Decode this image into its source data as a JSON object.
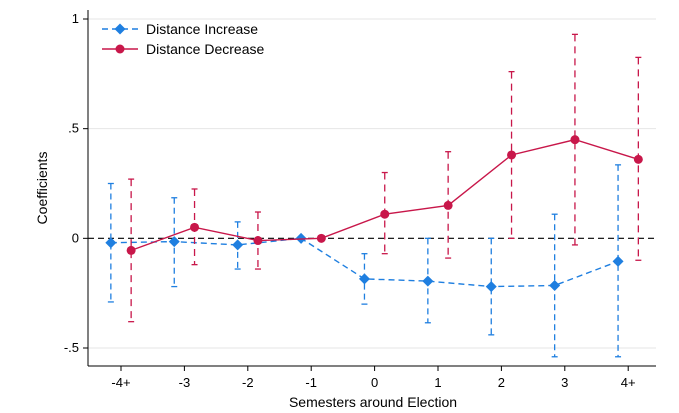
{
  "chart_data": {
    "type": "scatter",
    "title": "",
    "xlabel": "Semesters around Election",
    "ylabel": "Coefficients",
    "categories": [
      "-4+",
      "-3",
      "-2",
      "-1",
      "0",
      "1",
      "2",
      "3",
      "4+"
    ],
    "ylim": [
      -0.55,
      1.0
    ],
    "yticks": [
      -0.5,
      0,
      0.5,
      1
    ],
    "ytick_labels": [
      "-.5",
      "0",
      ".5",
      "1"
    ],
    "grid": true,
    "reference_line": 0,
    "legend_position": "top-left",
    "series": [
      {
        "name": "Distance Increase",
        "color": "#1f7fe0",
        "marker": "diamond",
        "line_style": "dashed",
        "x_offset": -0.16,
        "values": [
          -0.02,
          -0.015,
          -0.03,
          0.0,
          -0.185,
          -0.195,
          -0.22,
          -0.215,
          -0.105
        ],
        "ci_low": [
          -0.29,
          -0.22,
          -0.14,
          0.0,
          -0.3,
          -0.385,
          -0.44,
          -0.54,
          -0.54
        ],
        "ci_high": [
          0.25,
          0.185,
          0.075,
          0.0,
          -0.07,
          0.0,
          0.0,
          0.11,
          0.335
        ]
      },
      {
        "name": "Distance Decrease",
        "color": "#c8174a",
        "marker": "circle",
        "line_style": "solid",
        "x_offset": 0.16,
        "values": [
          -0.055,
          0.05,
          -0.01,
          0.0,
          0.11,
          0.15,
          0.38,
          0.45,
          0.36
        ],
        "ci_low": [
          -0.38,
          -0.12,
          -0.14,
          0.0,
          -0.07,
          -0.09,
          0.0,
          -0.03,
          -0.1
        ],
        "ci_high": [
          0.27,
          0.225,
          0.12,
          0.0,
          0.3,
          0.395,
          0.76,
          0.93,
          0.825
        ]
      }
    ]
  }
}
